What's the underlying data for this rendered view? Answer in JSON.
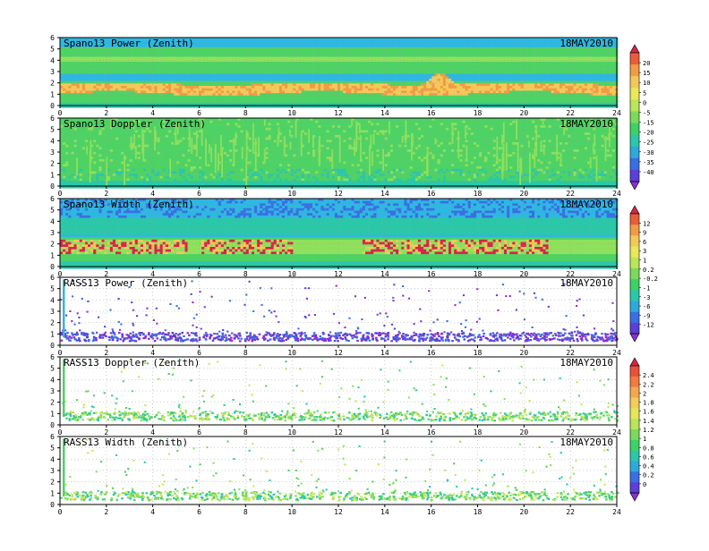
{
  "date": "18MAY2010",
  "x_ticks": [
    0,
    2,
    4,
    6,
    8,
    10,
    12,
    14,
    16,
    18,
    20,
    22,
    24
  ],
  "y_ticks": [
    0,
    1,
    2,
    3,
    4,
    5,
    6
  ],
  "colorbars": [
    {
      "id": "power-snr",
      "labels": [
        "20",
        "15",
        "10",
        "5",
        "0",
        "-5",
        "-15",
        "-20",
        "-25",
        "-30",
        "-35",
        "-40"
      ],
      "colors": [
        "#d8244a",
        "#e95d3b",
        "#f19b45",
        "#f3c85a",
        "#e8e85a",
        "#b9e65a",
        "#7cd95c",
        "#3fd067",
        "#2bc7a8",
        "#2fa9dc",
        "#3a6fe3",
        "#5b3fd8",
        "#8a2fd0"
      ]
    },
    {
      "id": "width",
      "labels": [
        "12",
        "9",
        "6",
        "3",
        "1",
        "0.2",
        "-0.2",
        "-1",
        "-3",
        "-6",
        "-9",
        "-12"
      ],
      "colors": [
        "#d8244a",
        "#e95d3b",
        "#f19b45",
        "#f3c85a",
        "#e8e85a",
        "#b9e65a",
        "#7cd95c",
        "#3fd067",
        "#2bc7a8",
        "#2fa9dc",
        "#3a6fe3",
        "#5b3fd8",
        "#8a2fd0"
      ]
    },
    {
      "id": "rass",
      "labels": [
        "2.4",
        "2.2",
        "2",
        "1.8",
        "1.6",
        "1.4",
        "1.2",
        "1",
        "0.8",
        "0.6",
        "0.4",
        "0.2",
        "0"
      ],
      "colors": [
        "#d8244a",
        "#e9503c",
        "#f07c3f",
        "#f3a84d",
        "#f3cc5a",
        "#e6e65a",
        "#b9e65a",
        "#7cd95c",
        "#3fd067",
        "#2bc7a8",
        "#2fa9dc",
        "#3a6fe3",
        "#5b3fd8",
        "#8a2fd0"
      ]
    }
  ],
  "chart_data": [
    {
      "type": "heatmap",
      "title": "Spano13 Power (Zenith)",
      "xlim": [
        0,
        24
      ],
      "ylim": [
        0,
        6
      ],
      "grid": true,
      "pattern": "spano_power",
      "annotation": "18MAY2010"
    },
    {
      "type": "heatmap",
      "title": "Spano13 Doppler (Zenith)",
      "xlim": [
        0,
        24
      ],
      "ylim": [
        0,
        6
      ],
      "grid": true,
      "pattern": "spano_doppler",
      "annotation": "18MAY2010"
    },
    {
      "type": "heatmap",
      "title": "Spano13 Width (Zenith)",
      "xlim": [
        0,
        24
      ],
      "ylim": [
        0,
        6
      ],
      "grid": true,
      "pattern": "spano_width",
      "annotation": "18MAY2010"
    },
    {
      "type": "heatmap",
      "title": "RASS13 Power (Zenith)",
      "xlim": [
        0,
        24
      ],
      "ylim": [
        0,
        6
      ],
      "grid": true,
      "pattern": "rass_power",
      "annotation": "18MAY2010"
    },
    {
      "type": "heatmap",
      "title": "RASS13 Doppler (Zenith)",
      "xlim": [
        0,
        24
      ],
      "ylim": [
        0,
        6
      ],
      "grid": true,
      "pattern": "rass_doppler",
      "annotation": "18MAY2010"
    },
    {
      "type": "heatmap",
      "title": "RASS13 Width (Zenith)",
      "xlim": [
        0,
        24
      ],
      "ylim": [
        0,
        6
      ],
      "grid": true,
      "pattern": "rass_width",
      "annotation": "18MAY2010"
    }
  ]
}
